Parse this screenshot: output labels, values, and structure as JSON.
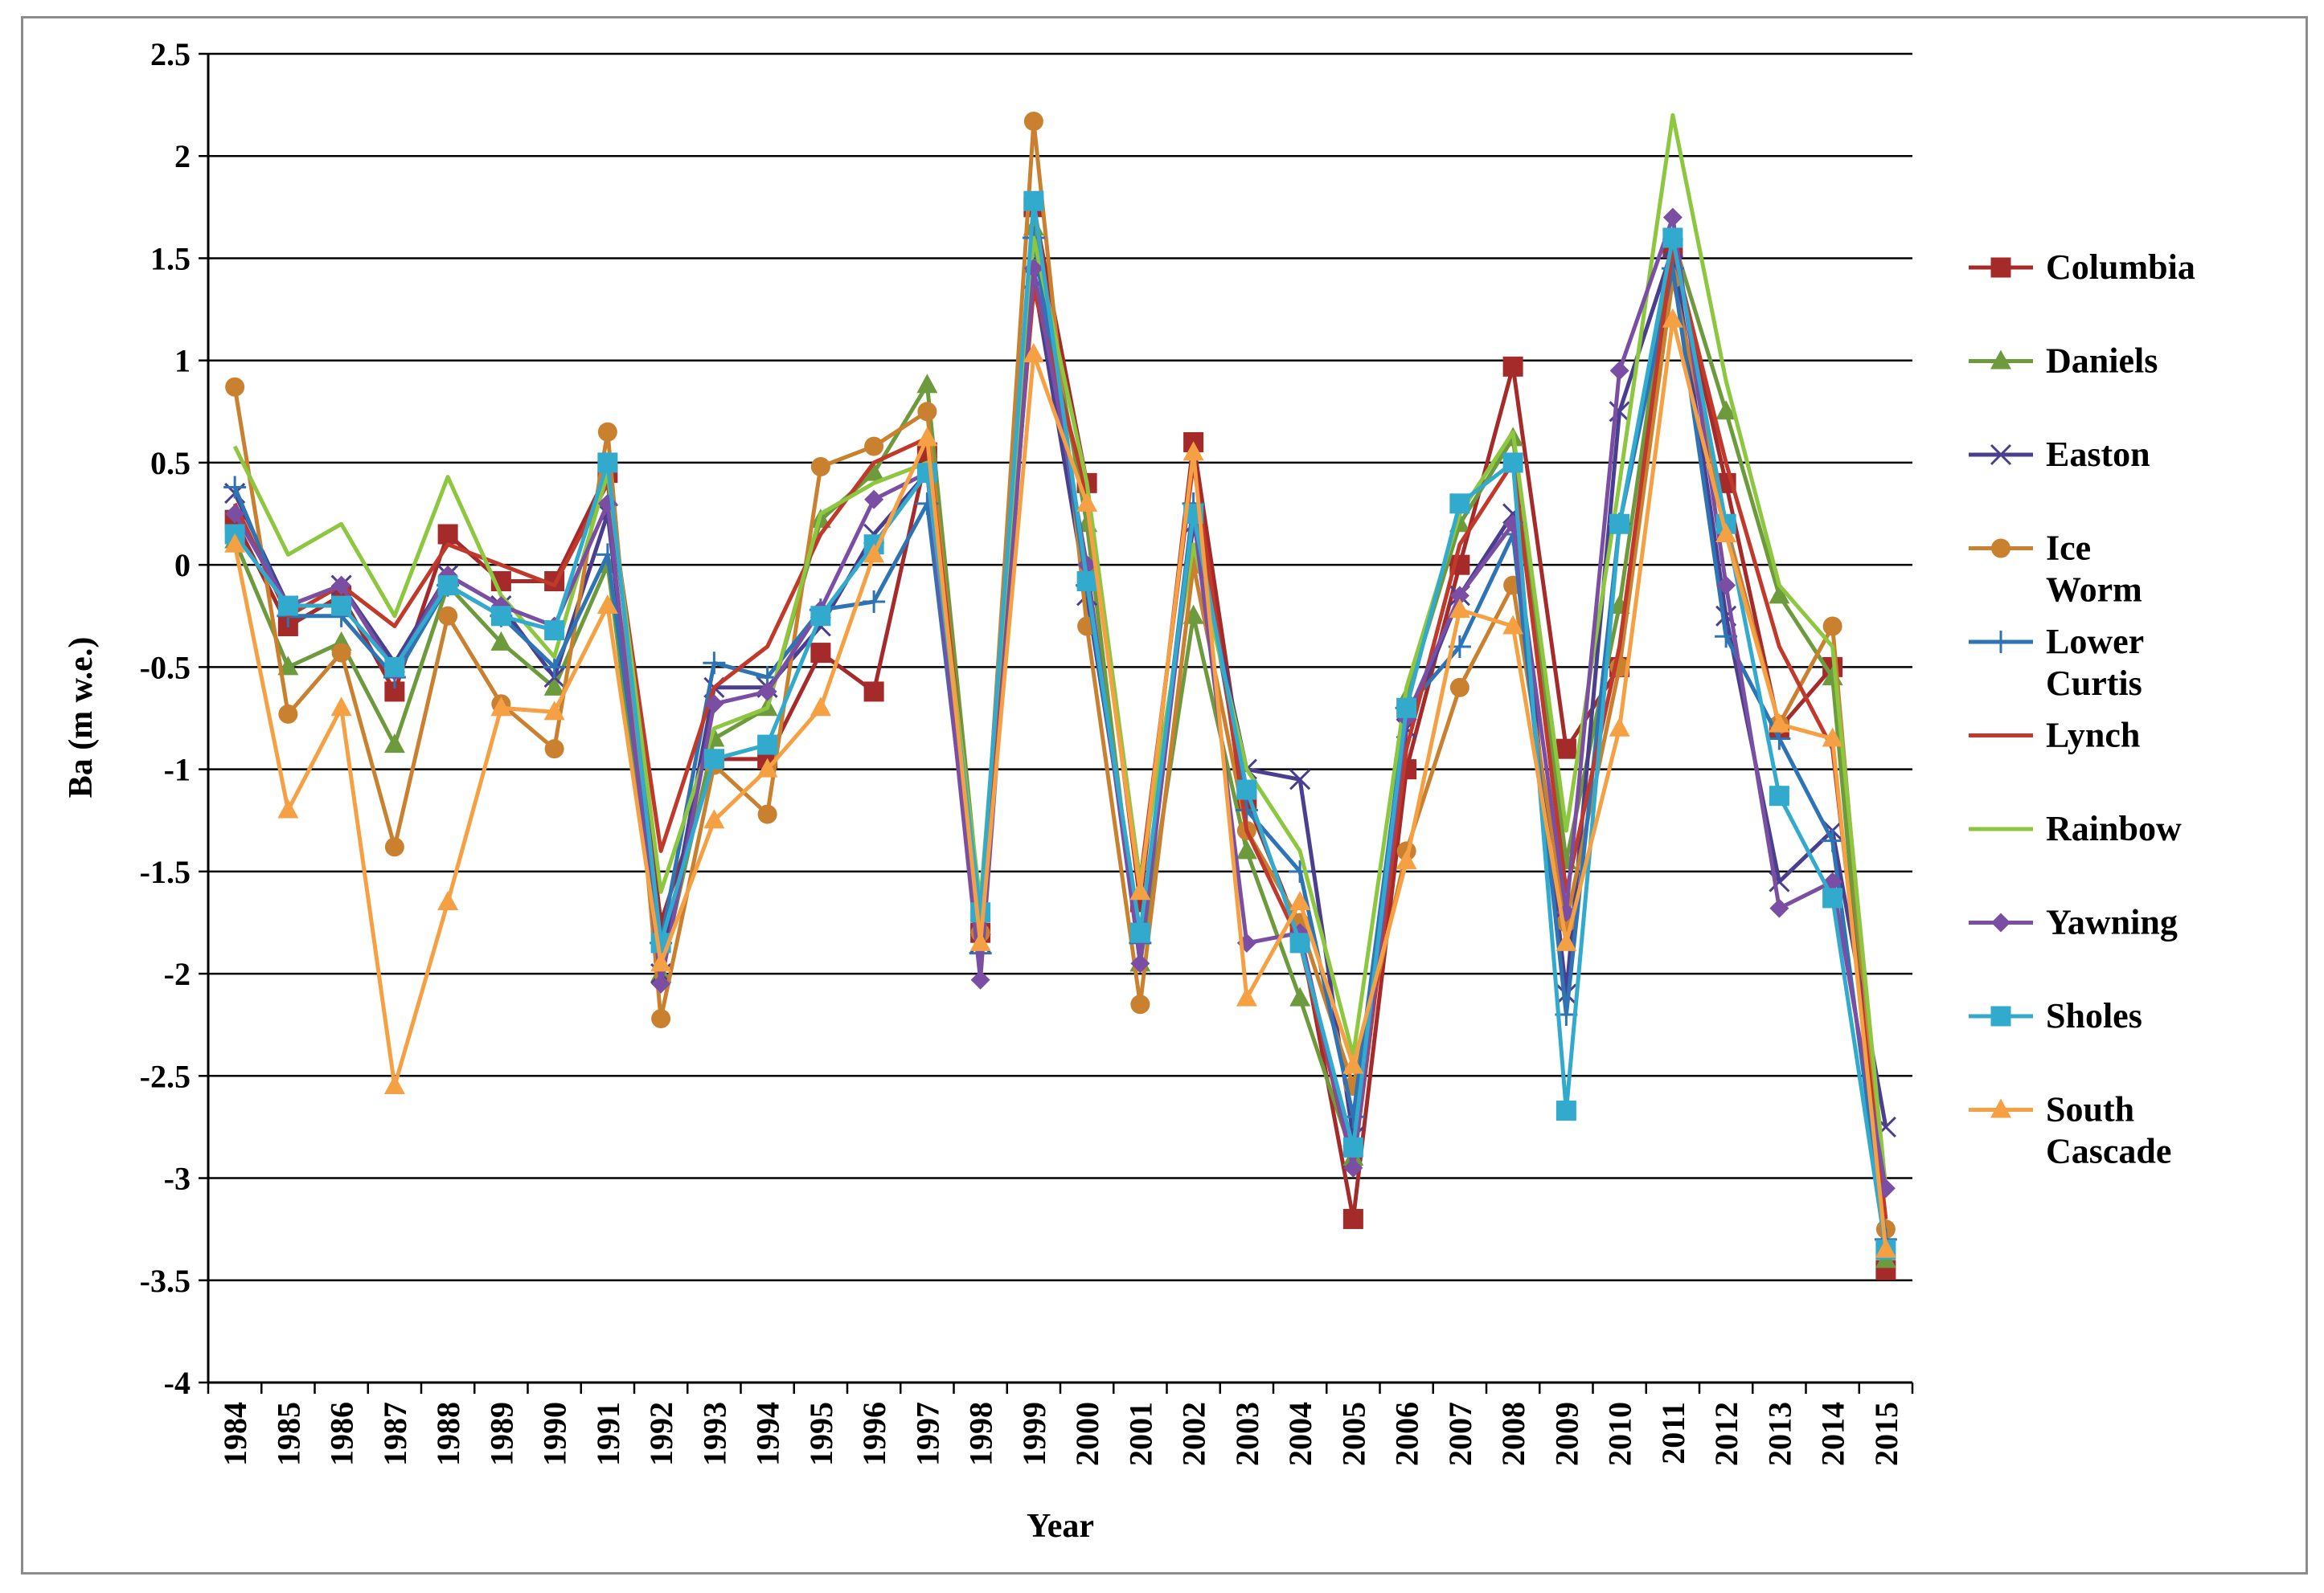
{
  "chart_data": {
    "type": "line",
    "xlabel": "Year",
    "ylabel": "Ba (m w.e.)",
    "ylim": [
      -4,
      2.5
    ],
    "yticks": [
      2.5,
      2,
      1.5,
      1,
      0.5,
      0,
      -0.5,
      -1,
      -1.5,
      -2,
      -2.5,
      -3,
      -3.5,
      -4
    ],
    "ytick_labels": [
      "2.5",
      "2",
      "1.5",
      "1",
      "0.5",
      "0",
      "-0.5",
      "-1",
      "-1.5",
      "-2",
      "-2.5",
      "-3",
      "-3.5",
      "-4"
    ],
    "grid": "horizontal",
    "legend_position": "right",
    "categories": [
      "1984",
      "1985",
      "1986",
      "1987",
      "1988",
      "1989",
      "1990",
      "1991",
      "1992",
      "1993",
      "1994",
      "1995",
      "1996",
      "1997",
      "1998",
      "1999",
      "2000",
      "2001",
      "2002",
      "2003",
      "2004",
      "2005",
      "2006",
      "2007",
      "2008",
      "2009",
      "2010",
      "2011",
      "2012",
      "2013",
      "2014",
      "2015"
    ],
    "series": [
      {
        "name": "Columbia",
        "color": "#a52a2a",
        "marker": "square",
        "values": [
          0.22,
          -0.3,
          -0.15,
          -0.62,
          0.15,
          -0.08,
          -0.08,
          0.45,
          -1.75,
          -0.95,
          -0.95,
          -0.43,
          -0.62,
          0.55,
          -1.8,
          1.75,
          0.4,
          -1.65,
          0.6,
          -1.15,
          -1.8,
          -3.2,
          -1.0,
          0.0,
          0.97,
          -0.9,
          -0.5,
          1.55,
          0.4,
          -0.8,
          -0.5,
          -3.45
        ]
      },
      {
        "name": "Daniels",
        "color": "#6e9a3e",
        "marker": "triangle",
        "values": [
          0.12,
          -0.5,
          -0.38,
          -0.88,
          -0.1,
          -0.38,
          -0.6,
          0.0,
          -2.0,
          -0.85,
          -0.7,
          0.22,
          0.45,
          0.88,
          -1.7,
          1.65,
          0.2,
          -1.95,
          -0.25,
          -1.4,
          -2.12,
          -2.9,
          -0.65,
          0.2,
          0.62,
          -1.45,
          -0.2,
          1.6,
          0.75,
          -0.15,
          -0.55,
          -3.4
        ]
      },
      {
        "name": "Easton",
        "color": "#4a3f8f",
        "marker": "x",
        "values": [
          0.35,
          -0.2,
          -0.1,
          -0.48,
          -0.05,
          -0.2,
          -0.55,
          0.25,
          -2.0,
          -0.6,
          -0.6,
          -0.3,
          0.15,
          0.45,
          -1.85,
          1.4,
          -0.15,
          -1.8,
          0.2,
          -1.0,
          -1.05,
          -2.8,
          -0.8,
          -0.15,
          0.25,
          -2.1,
          0.75,
          1.55,
          -0.25,
          -1.55,
          -1.3,
          -2.75
        ]
      },
      {
        "name": "Ice Worm",
        "color": "#c98130",
        "marker": "circle",
        "values": [
          0.87,
          -0.73,
          -0.43,
          -1.38,
          -0.25,
          -0.68,
          -0.9,
          0.65,
          -2.22,
          -0.98,
          -1.22,
          0.48,
          0.58,
          0.75,
          -1.8,
          2.17,
          -0.3,
          -2.15,
          0.0,
          -1.3,
          -1.75,
          -2.55,
          -1.4,
          -0.6,
          -0.1,
          -1.75,
          -0.5,
          1.4,
          0.2,
          -0.78,
          -0.3,
          -3.25
        ]
      },
      {
        "name": "Lower Curtis",
        "color": "#2e74b5",
        "marker": "plus",
        "values": [
          0.38,
          -0.25,
          -0.25,
          -0.55,
          -0.1,
          -0.25,
          -0.5,
          0.05,
          -1.85,
          -0.48,
          -0.55,
          -0.22,
          -0.18,
          0.3,
          -1.9,
          1.6,
          -0.1,
          -1.85,
          0.3,
          -1.2,
          -1.5,
          -2.7,
          -0.7,
          -0.4,
          0.15,
          -2.2,
          0.2,
          1.45,
          -0.35,
          -0.85,
          -1.35,
          -3.3
        ]
      },
      {
        "name": "Lynch",
        "color": "#c0392b",
        "marker": "none",
        "values": [
          0.3,
          -0.25,
          -0.1,
          -0.3,
          0.1,
          0.0,
          -0.1,
          0.4,
          -1.4,
          -0.6,
          -0.4,
          0.15,
          0.5,
          0.62,
          -1.7,
          1.35,
          0.35,
          -1.55,
          0.5,
          -1.3,
          -1.85,
          -2.95,
          -0.9,
          0.1,
          0.5,
          -1.6,
          -0.4,
          1.55,
          0.5,
          -0.4,
          -0.9,
          -3.2
        ]
      },
      {
        "name": "Rainbow",
        "color": "#8dc63f",
        "marker": "none",
        "values": [
          0.58,
          0.05,
          0.2,
          -0.25,
          0.43,
          -0.15,
          -0.45,
          0.45,
          -1.6,
          -0.8,
          -0.7,
          0.25,
          0.4,
          0.5,
          -1.65,
          1.6,
          0.4,
          -1.55,
          0.1,
          -1.0,
          -1.4,
          -2.4,
          -0.6,
          0.25,
          0.65,
          -1.3,
          0.4,
          2.2,
          0.9,
          -0.1,
          -0.4,
          -3.05
        ]
      },
      {
        "name": "Yawning",
        "color": "#7a4fa3",
        "marker": "diamond",
        "values": [
          0.25,
          -0.2,
          -0.1,
          -0.52,
          -0.05,
          -0.2,
          -0.3,
          0.3,
          -2.05,
          -0.68,
          -0.62,
          -0.22,
          0.32,
          0.45,
          -2.03,
          1.45,
          0.0,
          -1.95,
          0.25,
          -1.85,
          -1.8,
          -2.95,
          -0.75,
          -0.15,
          0.2,
          -1.7,
          0.95,
          1.7,
          -0.1,
          -1.68,
          -1.55,
          -3.05
        ]
      },
      {
        "name": "Sholes",
        "color": "#31aacd",
        "marker": "square",
        "values": [
          0.15,
          -0.2,
          -0.2,
          -0.5,
          -0.1,
          -0.25,
          -0.32,
          0.5,
          -1.85,
          -0.95,
          -0.88,
          -0.25,
          0.1,
          0.45,
          -1.7,
          1.78,
          -0.08,
          -1.8,
          0.25,
          -1.1,
          -1.85,
          -2.85,
          -0.7,
          0.3,
          0.5,
          -2.67,
          0.2,
          1.6,
          0.2,
          -1.13,
          -1.63,
          -3.35
        ]
      },
      {
        "name": "South Cascade",
        "color": "#f5a043",
        "marker": "triangle",
        "values": [
          0.1,
          -1.2,
          -0.7,
          -2.55,
          -1.65,
          -0.7,
          -0.72,
          -0.2,
          -1.95,
          -1.25,
          -1.0,
          -0.7,
          0.05,
          0.62,
          -1.85,
          1.03,
          0.3,
          -1.6,
          0.55,
          -2.12,
          -1.65,
          -2.45,
          -1.45,
          -0.22,
          -0.3,
          -1.85,
          -0.8,
          1.2,
          0.15,
          -0.78,
          -0.85,
          -3.35
        ]
      }
    ]
  }
}
